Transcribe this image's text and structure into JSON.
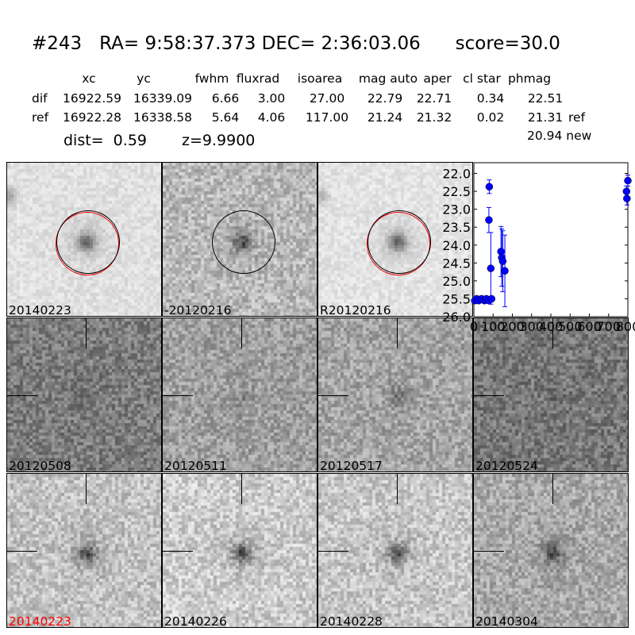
{
  "header": {
    "title": "#243   RA= 9:58:37.373 DEC= 2:36:03.06      score=30.0",
    "columns": [
      "xc",
      "yc",
      "fwhm",
      "fluxrad",
      "isoarea",
      "mag auto",
      "aper",
      "cl star",
      "phmag"
    ],
    "rows": [
      {
        "label": "dif",
        "values": [
          "16922.59",
          "16339.09",
          "6.66",
          "3.00",
          "27.00",
          "22.79",
          "22.71",
          "0.34",
          "22.51"
        ],
        "suffix": ""
      },
      {
        "label": "ref",
        "values": [
          "16922.28",
          "16338.58",
          "5.64",
          "4.06",
          "117.00",
          "21.24",
          "21.32",
          "0.02",
          "21.31"
        ],
        "suffix": "ref"
      }
    ],
    "new_phmag": "20.94 new",
    "dist": "dist=  0.59",
    "z": "z=9.9900"
  },
  "stamps": [
    {
      "label": "20140223",
      "label_color": "#000000",
      "tone": 225,
      "blob": 0.55,
      "overlay": "circles"
    },
    {
      "label": "-20120216",
      "label_color": "#000000",
      "tone": 185,
      "blob": 0.45,
      "overlay": "circle"
    },
    {
      "label": "R20120216",
      "label_color": "#000000",
      "tone": 228,
      "blob": 0.55,
      "overlay": "circles"
    },
    {
      "label": "20120508",
      "label_color": "#000000",
      "tone": 125,
      "blob": 0.1,
      "overlay": "cross"
    },
    {
      "label": "20120511",
      "label_color": "#000000",
      "tone": 160,
      "blob": 0.1,
      "overlay": "cross"
    },
    {
      "label": "20120517",
      "label_color": "#000000",
      "tone": 165,
      "blob": 0.2,
      "overlay": "cross"
    },
    {
      "label": "20120524",
      "label_color": "#000000",
      "tone": 120,
      "blob": 0.05,
      "overlay": "cross"
    },
    {
      "label": "20140223",
      "label_color": "#ff0000",
      "tone": 195,
      "blob": 0.5,
      "overlay": "cross"
    },
    {
      "label": "20140226",
      "label_color": "#000000",
      "tone": 205,
      "blob": 0.55,
      "overlay": "cross"
    },
    {
      "label": "20140228",
      "label_color": "#000000",
      "tone": 200,
      "blob": 0.5,
      "overlay": "cross"
    },
    {
      "label": "20140304",
      "label_color": "#000000",
      "tone": 170,
      "blob": 0.4,
      "overlay": "cross"
    }
  ],
  "chart_data": {
    "type": "scatter",
    "xlim": [
      0,
      800
    ],
    "ylim": [
      26.0,
      21.7
    ],
    "y_inverted": true,
    "xticks": [
      "0",
      "100",
      "200",
      "300",
      "400",
      "500",
      "600",
      "700",
      "800"
    ],
    "yticks": [
      "22.0",
      "22.5",
      "23.0",
      "23.5",
      "24.0",
      "24.5",
      "25.0",
      "25.5",
      "26.0"
    ],
    "marker_color": "#0000ff",
    "points": [
      {
        "x": 5,
        "y": 25.55,
        "err": 0
      },
      {
        "x": 15,
        "y": 25.5,
        "err": 0
      },
      {
        "x": 25,
        "y": 25.55,
        "err": 0
      },
      {
        "x": 40,
        "y": 25.5,
        "err": 0
      },
      {
        "x": 55,
        "y": 25.55,
        "err": 0
      },
      {
        "x": 65,
        "y": 25.5,
        "err": 0
      },
      {
        "x": 78,
        "y": 25.55,
        "err": 0
      },
      {
        "x": 92,
        "y": 25.5,
        "err": 0
      },
      {
        "x": 80,
        "y": 22.37,
        "err": 0.19
      },
      {
        "x": 78,
        "y": 23.3,
        "err": 0.35
      },
      {
        "x": 88,
        "y": 24.65,
        "err": 1.0
      },
      {
        "x": 141,
        "y": 24.18,
        "err": 0.7
      },
      {
        "x": 145,
        "y": 24.35,
        "err": 0.8
      },
      {
        "x": 150,
        "y": 24.45,
        "err": 0.85
      },
      {
        "x": 161,
        "y": 24.72,
        "err": 1.0
      },
      {
        "x": 793,
        "y": 22.5,
        "err": 0.15
      },
      {
        "x": 795,
        "y": 22.7,
        "err": 0.18
      },
      {
        "x": 800,
        "y": 22.2,
        "err": 0.15
      }
    ]
  }
}
